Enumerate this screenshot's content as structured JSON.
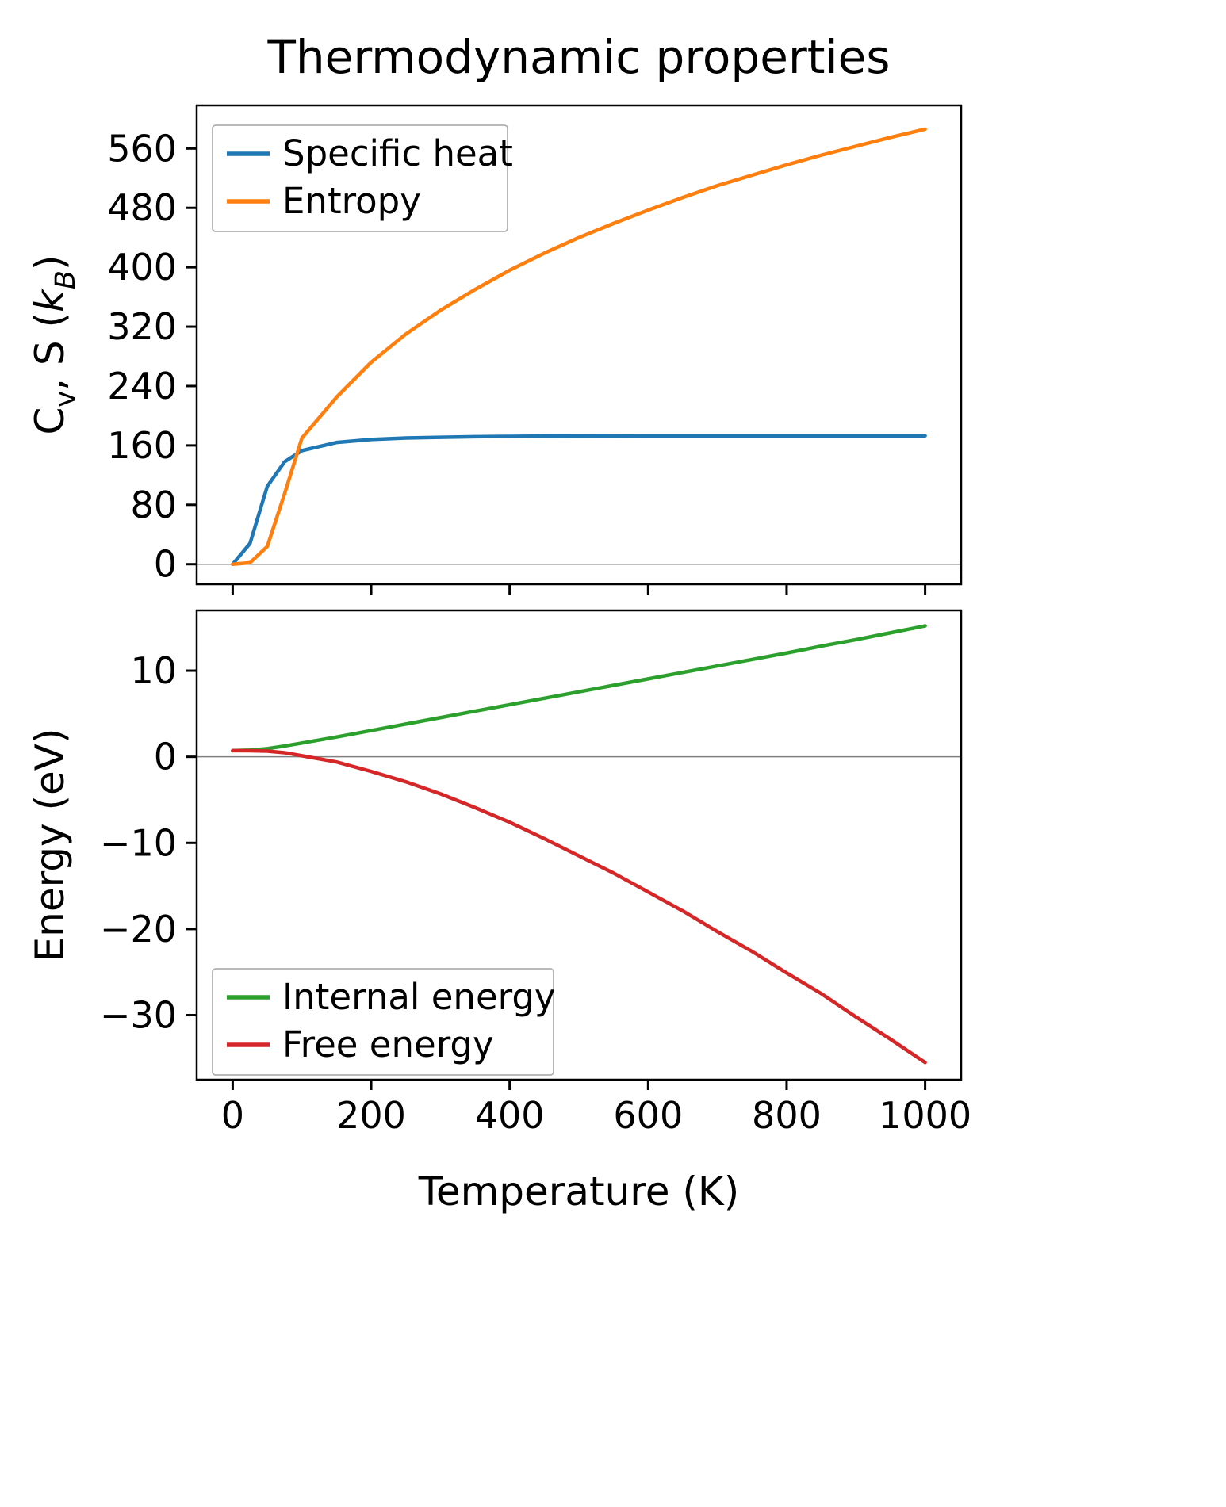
{
  "title": "Thermodynamic properties",
  "colors": {
    "specific_heat": "#1f77b4",
    "entropy": "#ff7f0e",
    "internal_energy": "#2ca02c",
    "free_energy": "#d62728",
    "axis": "#000000",
    "zero_line": "#808080",
    "legend_border": "#b0b0b0"
  },
  "chart_data": [
    {
      "type": "line",
      "title": "Thermodynamic properties",
      "xlabel": "",
      "ylabel": "Cv, S (kB)",
      "ylabel_parts": [
        {
          "t": "C"
        },
        {
          "t": "v",
          "sub": true
        },
        {
          "t": ", S ("
        },
        {
          "t": "k",
          "italic": true
        },
        {
          "t": "B",
          "sub": true,
          "italic": true
        },
        {
          "t": ")"
        }
      ],
      "xlim": [
        -52,
        1052
      ],
      "ylim": [
        -27,
        618
      ],
      "xticks": [
        0,
        200,
        400,
        600,
        800,
        1000
      ],
      "yticks": [
        0,
        80,
        160,
        240,
        320,
        400,
        480,
        560
      ],
      "show_xtick_labels": false,
      "grid": false,
      "zero_line": true,
      "legend_position": "upper-left",
      "x": [
        0,
        25,
        50,
        75,
        100,
        150,
        200,
        250,
        300,
        350,
        400,
        450,
        500,
        550,
        600,
        650,
        700,
        750,
        800,
        850,
        900,
        950,
        1000
      ],
      "series": [
        {
          "name": "Specific heat",
          "color": "#1f77b4",
          "values": [
            0,
            28,
            105,
            138,
            153,
            164,
            168,
            170,
            171,
            171.8,
            172.2,
            172.5,
            172.7,
            172.8,
            172.9,
            172.9,
            173,
            173,
            173,
            173,
            173,
            173,
            173
          ]
        },
        {
          "name": "Entropy",
          "color": "#ff7f0e",
          "values": [
            0,
            2,
            24,
            95,
            170,
            225,
            272,
            310,
            342,
            370,
            396,
            419,
            440,
            459,
            477,
            494,
            510,
            524,
            538,
            551,
            563,
            575,
            586
          ]
        }
      ]
    },
    {
      "type": "line",
      "title": "",
      "xlabel": "Temperature (K)",
      "ylabel": "Energy (eV)",
      "ylabel_parts": [
        {
          "t": "Energy (eV)"
        }
      ],
      "xlim": [
        -52,
        1052
      ],
      "ylim": [
        -37.5,
        17
      ],
      "xticks": [
        0,
        200,
        400,
        600,
        800,
        1000
      ],
      "yticks": [
        -30,
        -20,
        -10,
        0,
        10
      ],
      "show_xtick_labels": true,
      "grid": false,
      "zero_line": true,
      "legend_position": "lower-left",
      "x": [
        0,
        25,
        50,
        75,
        100,
        150,
        200,
        250,
        300,
        350,
        400,
        450,
        500,
        550,
        600,
        650,
        700,
        750,
        800,
        850,
        900,
        950,
        1000
      ],
      "series": [
        {
          "name": "Internal energy",
          "color": "#2ca02c",
          "values": [
            0.72,
            0.78,
            0.95,
            1.25,
            1.6,
            2.3,
            3.05,
            3.8,
            4.55,
            5.3,
            6.05,
            6.8,
            7.55,
            8.3,
            9.05,
            9.8,
            10.55,
            11.3,
            12.05,
            12.85,
            13.6,
            14.4,
            15.2
          ]
        },
        {
          "name": "Free energy",
          "color": "#d62728",
          "values": [
            0.72,
            0.71,
            0.66,
            0.48,
            0.12,
            -0.6,
            -1.7,
            -2.9,
            -4.3,
            -5.9,
            -7.6,
            -9.5,
            -11.5,
            -13.5,
            -15.7,
            -17.9,
            -20.3,
            -22.6,
            -25.1,
            -27.5,
            -30.2,
            -32.8,
            -35.5
          ]
        }
      ]
    }
  ]
}
